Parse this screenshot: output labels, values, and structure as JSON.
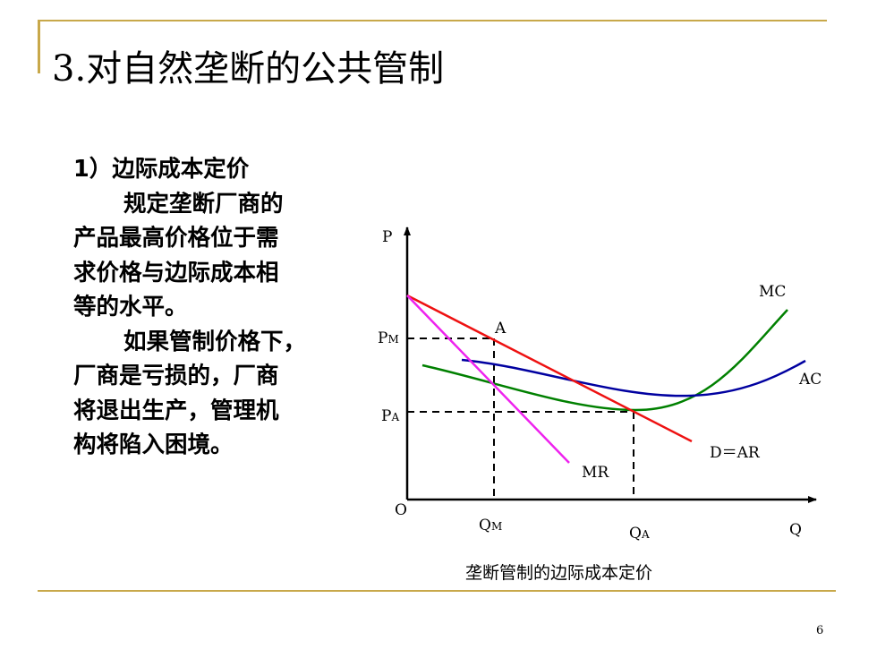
{
  "slide": {
    "title": "3.对自然垄断的公共管制",
    "heading": "1）边际成本定价",
    "paragraph1": [
      "规定垄断厂商的",
      "产品最高价格位于需",
      "求价格与边际成本相",
      "等的水平。"
    ],
    "paragraph2": [
      "如果管制价格下，",
      "厂商是亏损的，厂商",
      "将退出生产，管理机",
      "构将陷入困境。"
    ],
    "caption": "垄断管制的边际成本定价",
    "page_number": "6"
  },
  "diagram": {
    "axis_y_label": "P",
    "axis_x_label": "Q",
    "origin_label": "O",
    "price_ticks": [
      {
        "main": "P",
        "sub": "M"
      },
      {
        "main": "P",
        "sub": "A"
      }
    ],
    "quantity_ticks": [
      {
        "main": "Q",
        "sub": "M"
      },
      {
        "main": "Q",
        "sub": "A"
      }
    ],
    "point_label": "A",
    "curves": [
      {
        "label": "MC",
        "color": "#008000"
      },
      {
        "label": "AC",
        "color": "#0000a0"
      },
      {
        "label": "D＝AR",
        "color": "#ee1111"
      },
      {
        "label": "MR",
        "color": "#ee22ee"
      }
    ]
  }
}
